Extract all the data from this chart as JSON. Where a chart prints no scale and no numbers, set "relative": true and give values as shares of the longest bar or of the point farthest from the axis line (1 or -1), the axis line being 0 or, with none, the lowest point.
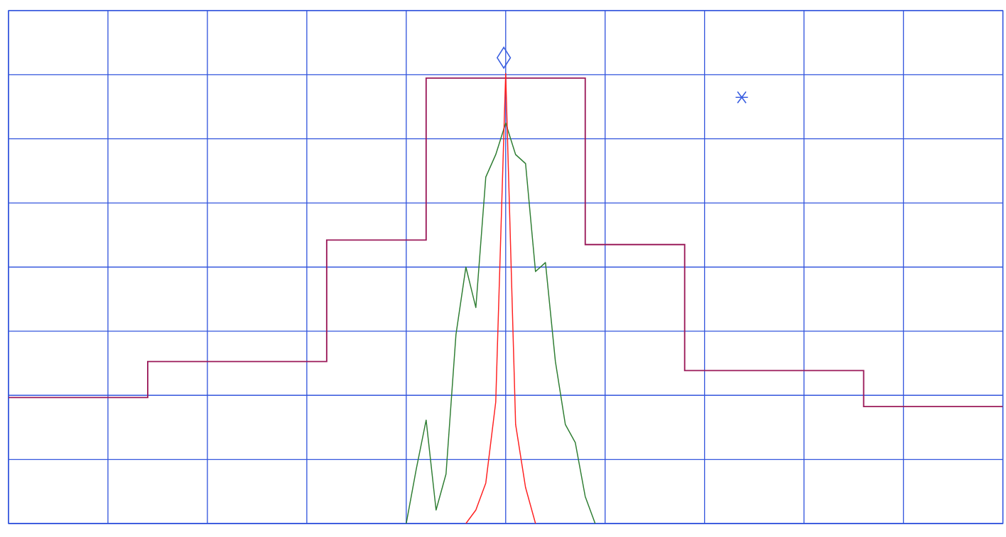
{
  "chart_data": {
    "type": "line",
    "relative": true,
    "grid": true,
    "categories": [
      null,
      null,
      null,
      null,
      null,
      null,
      null,
      null,
      null,
      null,
      null,
      null,
      null,
      null,
      null,
      null,
      null,
      null,
      null,
      null,
      null,
      null,
      null,
      null,
      null,
      null,
      null,
      null,
      null,
      null,
      null,
      null,
      null,
      null,
      null,
      null,
      null,
      null,
      null,
      null,
      null,
      null,
      null,
      null,
      null,
      null,
      null,
      null,
      null,
      null,
      null,
      null,
      null,
      null,
      null,
      null,
      null,
      null,
      null,
      null,
      null,
      null,
      null,
      null,
      null,
      null,
      null,
      null,
      null,
      null,
      null,
      null,
      null,
      null,
      null,
      null,
      null,
      null,
      null,
      null,
      null,
      null,
      null,
      null,
      null,
      null,
      null,
      null,
      null,
      null,
      null,
      null,
      null,
      null,
      null,
      null,
      null,
      null,
      null,
      null,
      null
    ],
    "series": [
      {
        "type": "step",
        "color": "#9b1b5a",
        "values": [
          0.28,
          0.28,
          0.28,
          0.28,
          0.28,
          0.28,
          0.28,
          0.28,
          0.28,
          0.28,
          0.28,
          0.28,
          0.28,
          0.28,
          0.36,
          0.36,
          0.36,
          0.36,
          0.36,
          0.36,
          0.36,
          0.36,
          0.36,
          0.36,
          0.36,
          0.36,
          0.36,
          0.36,
          0.36,
          0.36,
          0.36,
          0.36,
          0.63,
          0.63,
          0.63,
          0.63,
          0.63,
          0.63,
          0.63,
          0.63,
          0.63,
          0.63,
          0.99,
          0.99,
          0.99,
          0.99,
          0.99,
          0.99,
          0.99,
          0.99,
          0.99,
          0.99,
          0.99,
          0.99,
          0.99,
          0.99,
          0.99,
          0.99,
          0.62,
          0.62,
          0.62,
          0.62,
          0.62,
          0.62,
          0.62,
          0.62,
          0.62,
          0.62,
          0.34,
          0.34,
          0.34,
          0.34,
          0.34,
          0.34,
          0.34,
          0.34,
          0.34,
          0.34,
          0.34,
          0.34,
          0.34,
          0.34,
          0.34,
          0.34,
          0.34,
          0.34,
          0.26,
          0.26,
          0.26,
          0.26,
          0.26,
          0.26,
          0.26,
          0.26,
          0.26,
          0.26,
          0.26,
          0.26,
          0.26,
          0.26,
          0.26
        ]
      },
      {
        "color": "#2e7d32",
        "values": [
          null,
          null,
          null,
          null,
          null,
          null,
          null,
          null,
          null,
          null,
          null,
          null,
          null,
          null,
          null,
          null,
          null,
          null,
          null,
          null,
          null,
          null,
          null,
          null,
          null,
          null,
          null,
          null,
          null,
          null,
          null,
          null,
          null,
          null,
          null,
          null,
          null,
          null,
          null,
          null,
          0,
          0.12,
          0.23,
          0.03,
          0.11,
          0.42,
          0.57,
          0.48,
          0.77,
          0.82,
          0.89,
          0.82,
          0.8,
          0.56,
          0.58,
          0.36,
          0.22,
          0.18,
          0.06,
          0,
          null,
          null,
          null,
          null,
          null,
          null,
          null,
          null,
          null,
          null,
          null,
          null,
          null,
          null,
          null,
          null,
          null,
          null,
          null,
          null,
          null,
          null,
          null,
          null,
          null,
          null,
          null,
          null,
          null,
          null,
          null,
          null,
          null,
          null,
          null,
          null,
          null,
          null,
          null,
          null,
          null
        ]
      },
      {
        "color": "#ff2020",
        "values": [
          null,
          null,
          null,
          null,
          null,
          null,
          null,
          null,
          null,
          null,
          null,
          null,
          null,
          null,
          null,
          null,
          null,
          null,
          null,
          null,
          null,
          null,
          null,
          null,
          null,
          null,
          null,
          null,
          null,
          null,
          null,
          null,
          null,
          null,
          null,
          null,
          null,
          null,
          null,
          null,
          null,
          null,
          null,
          null,
          null,
          null,
          0,
          0.03,
          0.09,
          0.27,
          1.0,
          0.22,
          0.08,
          0,
          null,
          null,
          null,
          null,
          null,
          null,
          null,
          null,
          null,
          null,
          null,
          null,
          null,
          null,
          null,
          null,
          null,
          null,
          null,
          null,
          null,
          null,
          null,
          null,
          null,
          null,
          null,
          null,
          null,
          null,
          null,
          null,
          null,
          null,
          null,
          null,
          null,
          null,
          null,
          null,
          null,
          null,
          null,
          null,
          null,
          null,
          null
        ]
      }
    ]
  }
}
